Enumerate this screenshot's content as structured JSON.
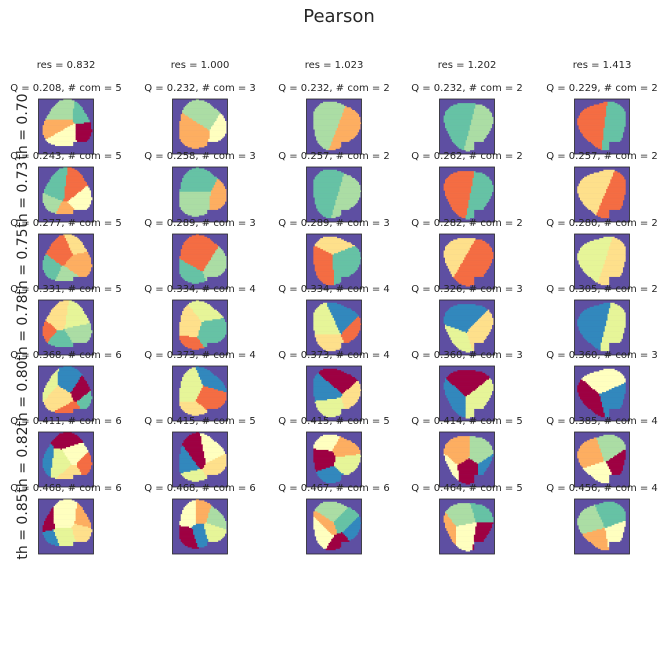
{
  "figure": {
    "title": "Pearson",
    "colors": {
      "background_community": "#5e4fa2",
      "palette": [
        "#9e0142",
        "#ffffbf",
        "#fdae61",
        "#abdda4",
        "#66c2a5",
        "#f46d43",
        "#fee08b",
        "#e6f598",
        "#3288bd"
      ]
    }
  },
  "chart_data": {
    "type": "heatmap",
    "description_title": "Pearson",
    "columns": [
      {
        "res_label": "res = 0.832"
      },
      {
        "res_label": "res = 1.000"
      },
      {
        "res_label": "res = 1.023"
      },
      {
        "res_label": "res = 1.202"
      },
      {
        "res_label": "res = 1.413"
      }
    ],
    "rows": [
      {
        "th_label": "th = 0.70",
        "cells": [
          {
            "label": "Q = 0.208,  # com = 5",
            "Q": 0.208,
            "n_com": 5
          },
          {
            "label": "Q = 0.232,  # com = 3",
            "Q": 0.232,
            "n_com": 3
          },
          {
            "label": "Q = 0.232,  # com = 2",
            "Q": 0.232,
            "n_com": 2
          },
          {
            "label": "Q = 0.232,  # com = 2",
            "Q": 0.232,
            "n_com": 2
          },
          {
            "label": "Q = 0.229,  # com = 2",
            "Q": 0.229,
            "n_com": 2
          }
        ]
      },
      {
        "th_label": "th = 0.73",
        "cells": [
          {
            "label": "Q = 0.243,  # com = 5",
            "Q": 0.243,
            "n_com": 5
          },
          {
            "label": "Q = 0.258,  # com = 3",
            "Q": 0.258,
            "n_com": 3
          },
          {
            "label": "Q = 0.257,  # com = 2",
            "Q": 0.257,
            "n_com": 2
          },
          {
            "label": "Q = 0.262,  # com = 2",
            "Q": 0.262,
            "n_com": 2
          },
          {
            "label": "Q = 0.257,  # com = 2",
            "Q": 0.257,
            "n_com": 2
          }
        ]
      },
      {
        "th_label": "th = 0.75",
        "cells": [
          {
            "label": "Q = 0.277,  # com = 5",
            "Q": 0.277,
            "n_com": 5
          },
          {
            "label": "Q = 0.289,  # com = 3",
            "Q": 0.289,
            "n_com": 3
          },
          {
            "label": "Q = 0.289,  # com = 3",
            "Q": 0.289,
            "n_com": 3
          },
          {
            "label": "Q = 0.282,  # com = 2",
            "Q": 0.282,
            "n_com": 2
          },
          {
            "label": "Q = 0.280,  # com = 2",
            "Q": 0.28,
            "n_com": 2
          }
        ]
      },
      {
        "th_label": "th = 0.78",
        "cells": [
          {
            "label": "Q = 0.331,  # com = 5",
            "Q": 0.331,
            "n_com": 5
          },
          {
            "label": "Q = 0.334,  # com = 4",
            "Q": 0.334,
            "n_com": 4
          },
          {
            "label": "Q = 0.334,  # com = 4",
            "Q": 0.334,
            "n_com": 4
          },
          {
            "label": "Q = 0.326,  # com = 3",
            "Q": 0.326,
            "n_com": 3
          },
          {
            "label": "Q = 0.305,  # com = 2",
            "Q": 0.305,
            "n_com": 2
          }
        ]
      },
      {
        "th_label": "th = 0.80",
        "cells": [
          {
            "label": "Q = 0.368,  # com = 6",
            "Q": 0.368,
            "n_com": 6
          },
          {
            "label": "Q = 0.373,  # com = 4",
            "Q": 0.373,
            "n_com": 4
          },
          {
            "label": "Q = 0.373,  # com = 4",
            "Q": 0.373,
            "n_com": 4
          },
          {
            "label": "Q = 0.360,  # com = 3",
            "Q": 0.36,
            "n_com": 3
          },
          {
            "label": "Q = 0.360,  # com = 3",
            "Q": 0.36,
            "n_com": 3
          }
        ]
      },
      {
        "th_label": "th = 0.82",
        "cells": [
          {
            "label": "Q = 0.411,  # com = 6",
            "Q": 0.411,
            "n_com": 6
          },
          {
            "label": "Q = 0.415,  # com = 5",
            "Q": 0.415,
            "n_com": 5
          },
          {
            "label": "Q = 0.415,  # com = 5",
            "Q": 0.415,
            "n_com": 5
          },
          {
            "label": "Q = 0.414,  # com = 5",
            "Q": 0.414,
            "n_com": 5
          },
          {
            "label": "Q = 0.385,  # com = 4",
            "Q": 0.385,
            "n_com": 4
          }
        ]
      },
      {
        "th_label": "th = 0.85",
        "cells": [
          {
            "label": "Q = 0.468,  # com = 6",
            "Q": 0.468,
            "n_com": 6
          },
          {
            "label": "Q = 0.468,  # com = 6",
            "Q": 0.468,
            "n_com": 6
          },
          {
            "label": "Q = 0.467,  # com = 6",
            "Q": 0.467,
            "n_com": 6
          },
          {
            "label": "Q = 0.464,  # com = 5",
            "Q": 0.464,
            "n_com": 5
          },
          {
            "label": "Q = 0.456,  # com = 4",
            "Q": 0.456,
            "n_com": 4
          }
        ]
      }
    ]
  }
}
